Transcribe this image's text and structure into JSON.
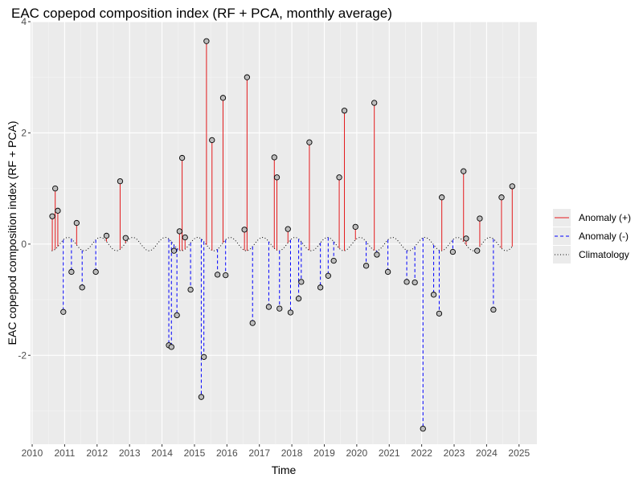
{
  "chart_data": {
    "type": "scatter",
    "title": "EAC copepod composition index (RF + PCA, monthly average)",
    "xlabel": "Time",
    "ylabel": "EAC copepod composition index (RF + PCA)",
    "xlim": [
      2009.95,
      2025.55
    ],
    "ylim": [
      -3.6,
      4.0
    ],
    "x_ticks": [
      2010,
      2011,
      2012,
      2013,
      2014,
      2015,
      2016,
      2017,
      2018,
      2019,
      2020,
      2021,
      2022,
      2023,
      2024,
      2025
    ],
    "x_tick_labels": [
      "2010",
      "2011",
      "2012",
      "2013",
      "2014",
      "2015",
      "2016",
      "2017",
      "2018",
      "2019",
      "2020",
      "2021",
      "2022",
      "2023",
      "2024",
      "2025"
    ],
    "y_ticks": [
      -2,
      0,
      2,
      4
    ],
    "y_tick_labels": [
      "-2",
      "0",
      "2",
      "4"
    ],
    "grid": true,
    "legend_position": "right",
    "legend": [
      {
        "name": "Anomaly (+)",
        "style": "solid",
        "color": "#e41a1c"
      },
      {
        "name": "Anomaly (-)",
        "style": "dashed",
        "color": "#0000ff"
      },
      {
        "name": "Climatology",
        "style": "dotted",
        "color": "#000000"
      }
    ],
    "climatology": {
      "mean": 0.0,
      "amplitude": 0.12,
      "period_years": 1.0,
      "peak_phase": 0.1
    },
    "series": [
      {
        "name": "Observations",
        "x": [
          2010.62,
          2010.71,
          2010.79,
          2010.96,
          2011.21,
          2011.37,
          2011.54,
          2011.96,
          2012.29,
          2012.71,
          2012.88,
          2014.21,
          2014.29,
          2014.37,
          2014.46,
          2014.54,
          2014.62,
          2014.71,
          2014.88,
          2015.21,
          2015.29,
          2015.37,
          2015.54,
          2015.71,
          2015.88,
          2015.96,
          2016.54,
          2016.62,
          2016.79,
          2017.29,
          2017.46,
          2017.54,
          2017.62,
          2017.88,
          2017.96,
          2018.21,
          2018.29,
          2018.54,
          2018.88,
          2019.12,
          2019.29,
          2019.46,
          2019.62,
          2019.96,
          2020.29,
          2020.54,
          2020.62,
          2020.96,
          2021.54,
          2021.79,
          2022.04,
          2022.37,
          2022.54,
          2022.62,
          2022.96,
          2023.29,
          2023.37,
          2023.71,
          2023.79,
          2024.21,
          2024.46,
          2024.79
        ],
        "y": [
          0.5,
          1.0,
          0.6,
          -1.22,
          -0.5,
          0.38,
          -0.78,
          -0.5,
          0.15,
          1.13,
          0.11,
          -1.82,
          -1.85,
          -0.12,
          -1.28,
          0.23,
          1.55,
          0.12,
          -0.82,
          -2.75,
          -2.03,
          3.65,
          1.87,
          -0.55,
          2.63,
          -0.56,
          0.26,
          3.0,
          -1.42,
          -1.13,
          1.56,
          1.2,
          -1.16,
          0.27,
          -1.23,
          -0.98,
          -0.68,
          1.83,
          -0.78,
          -0.57,
          -0.3,
          1.2,
          2.4,
          0.31,
          -0.39,
          2.54,
          -0.19,
          -0.5,
          -0.68,
          -0.69,
          -3.32,
          -0.91,
          -1.25,
          0.84,
          -0.14,
          1.31,
          0.1,
          -0.12,
          0.46,
          -1.18,
          0.84,
          1.04
        ]
      }
    ]
  }
}
